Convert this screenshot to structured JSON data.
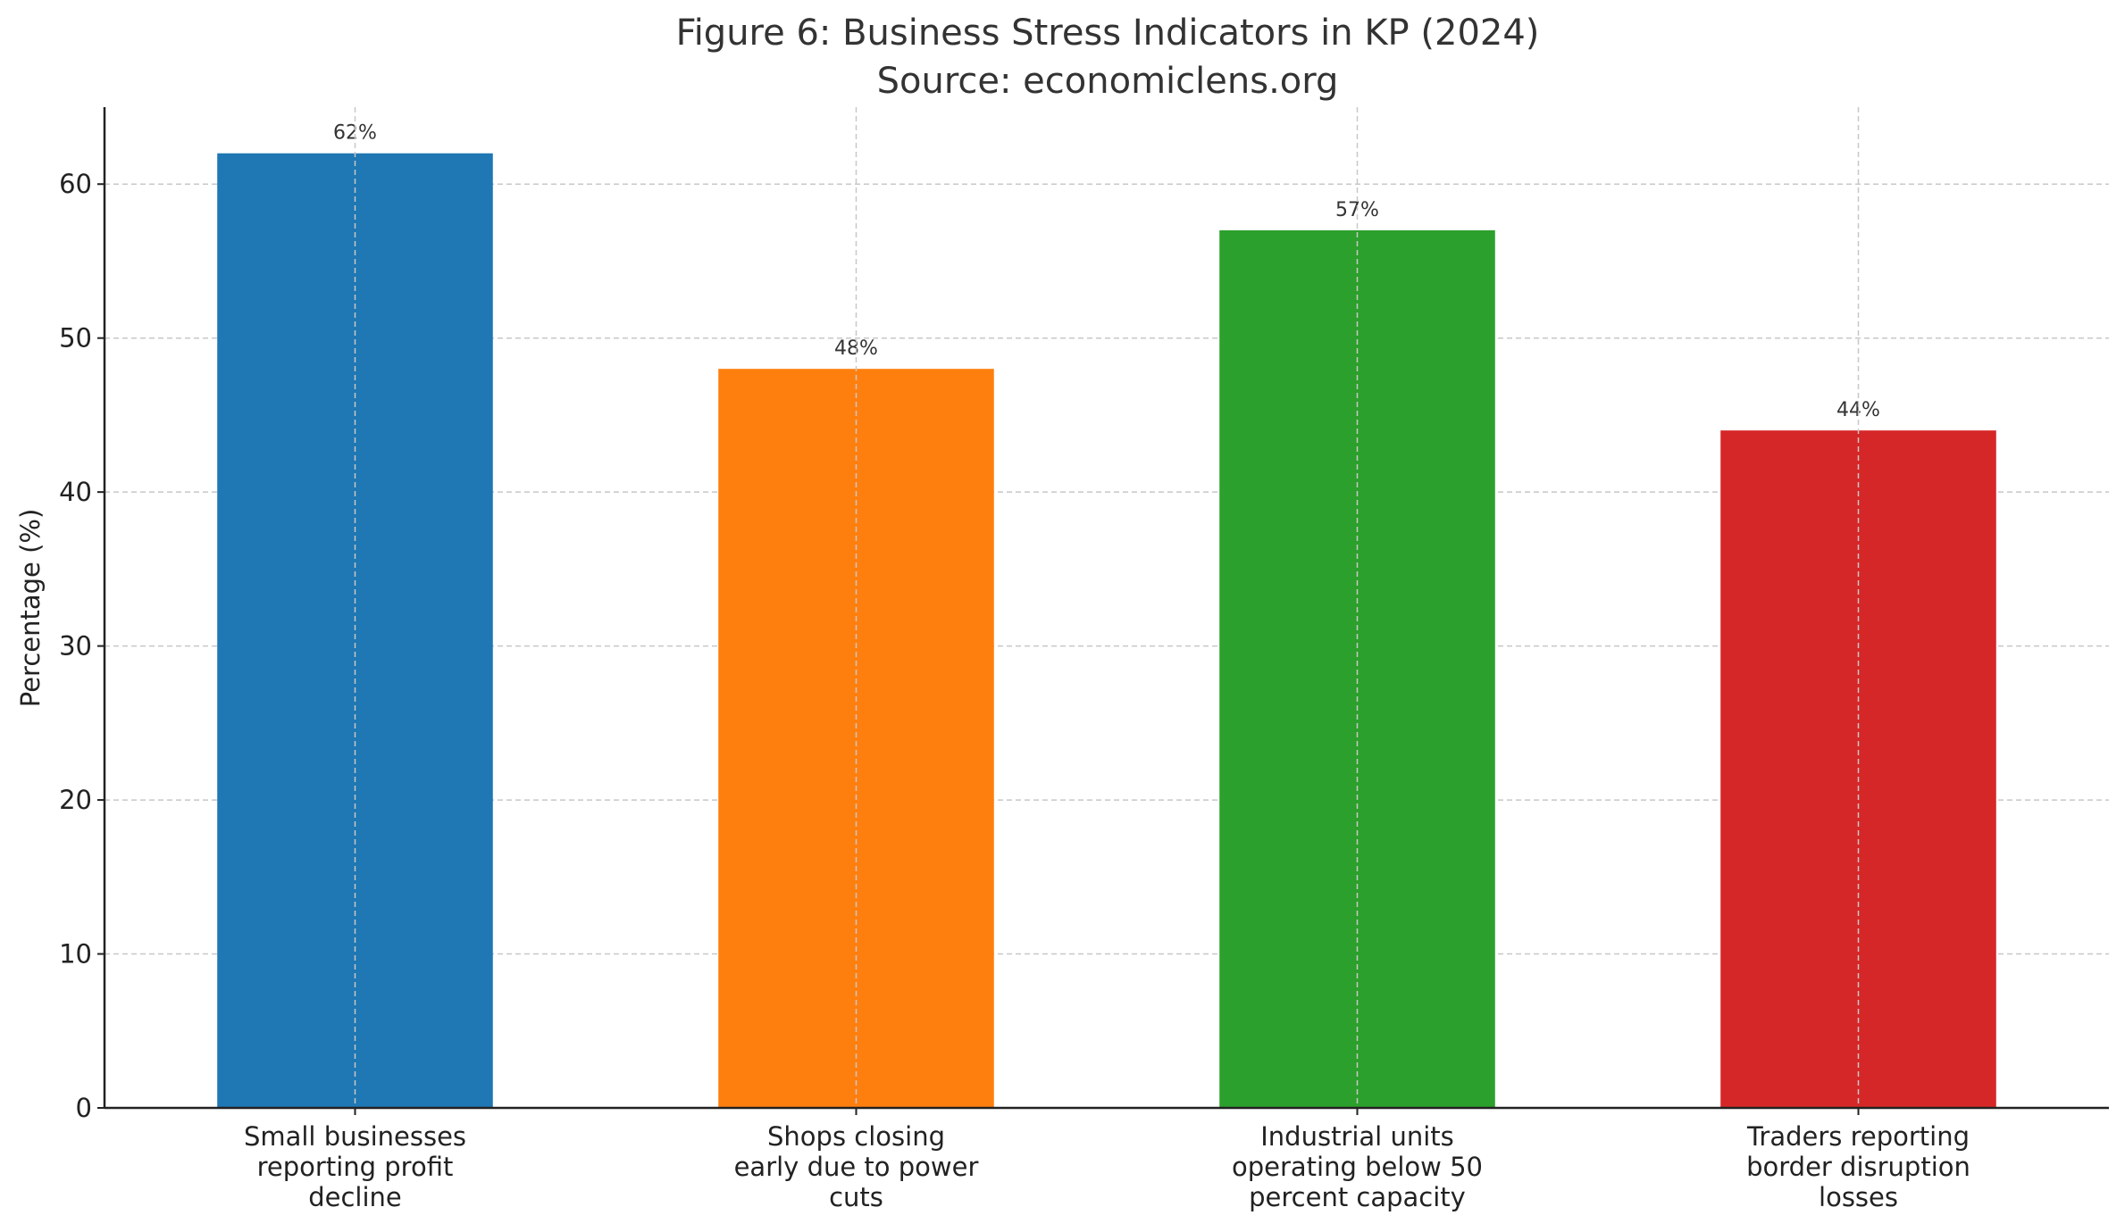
{
  "chart_data": {
    "type": "bar",
    "title": "Figure 6: Business Stress Indicators in KP (2024)",
    "subtitle": "Source: economiclens.org",
    "xlabel": "",
    "ylabel": "Percentage (%)",
    "ylim": [
      0,
      65
    ],
    "yticks": [
      0,
      10,
      20,
      30,
      40,
      50,
      60
    ],
    "grid": true,
    "categories": [
      [
        "Small businesses",
        "reporting profit",
        "decline"
      ],
      [
        "Shops closing",
        "early due to power",
        "cuts"
      ],
      [
        "Industrial units",
        "operating below 50",
        "percent capacity"
      ],
      [
        "Traders reporting",
        "border disruption",
        "losses"
      ]
    ],
    "values": [
      62,
      48,
      57,
      44
    ],
    "data_labels": [
      "62%",
      "48%",
      "57%",
      "44%"
    ],
    "colors": [
      "#1f77b4",
      "#ff7f0e",
      "#2ca02c",
      "#d62728"
    ]
  }
}
